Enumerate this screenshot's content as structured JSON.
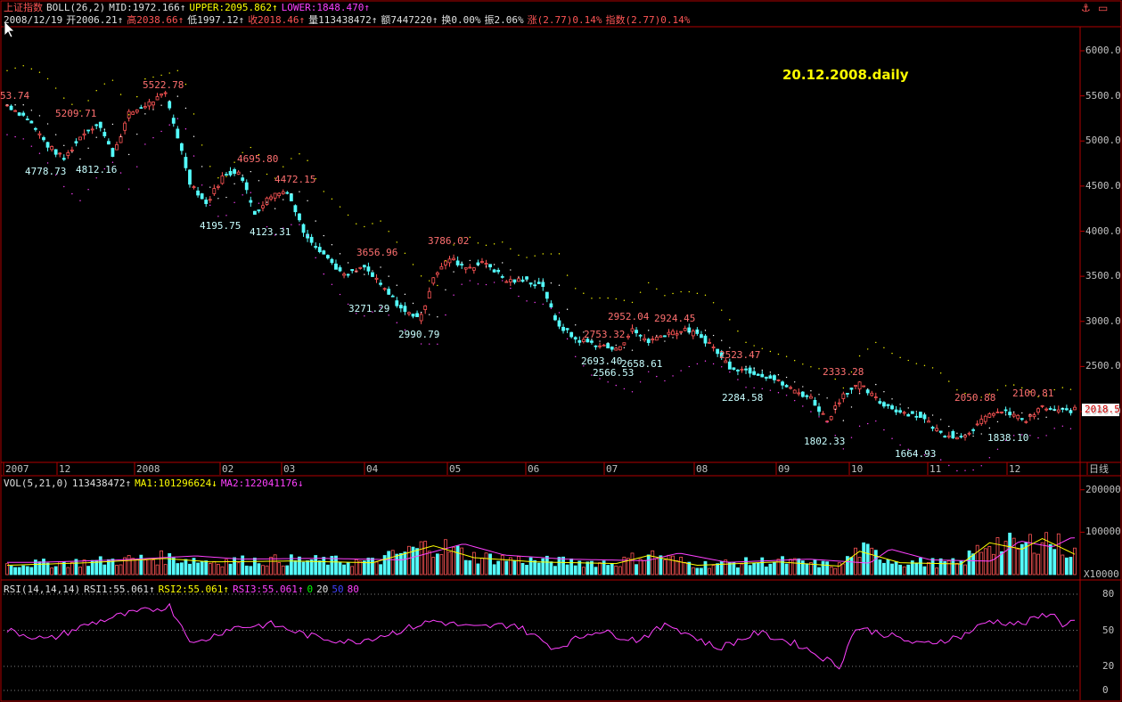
{
  "colors": {
    "up": "#ff5555",
    "down": "#54fcfc",
    "mid": "#ffffff",
    "upper": "#ffff00",
    "lower": "#ff40ff",
    "ma1": "#ffff00",
    "ma2": "#ff40ff",
    "rsi": "#ff40ff",
    "grid": "#8b0000",
    "axis": "#b00000"
  },
  "header": {
    "symbol": "上证指数",
    "indicator": "BOLL(26,2)",
    "mid": "MID:1972.166↑",
    "upper": "UPPER:2095.862↑",
    "lower": "LOWER:1848.470↑",
    "line2": {
      "date": "2008/12/19",
      "open": "开2006.21↑",
      "high": "高2038.66↑",
      "low": "低1997.12↑",
      "close": "收2018.46↑",
      "volume": "量113438472↑",
      "amount": "额7447220↑",
      "turnover": "换0.00%",
      "amplitude": "振2.06%",
      "rise": "涨(2.77)0.14%",
      "index": "指数(2.77)0.14%"
    }
  },
  "watermark": "20.12.2008.daily",
  "controls": {
    "anchor_icon": "anchor-icon",
    "restore_icon": "restore-window-icon"
  },
  "price_axis": {
    "labels": [
      "6000.0",
      "5500.0",
      "5000.0",
      "4500.0",
      "4000.0",
      "3500.0",
      "3000.0",
      "2500.0",
      "2000.0"
    ],
    "values": [
      6000,
      5500,
      5000,
      4500,
      4000,
      3500,
      3000,
      2500,
      2000
    ],
    "last_price": "2018.5"
  },
  "time_axis": {
    "labels": [
      "2007",
      "12",
      "2008",
      "02",
      "03",
      "04",
      "05",
      "06",
      "07",
      "08",
      "09",
      "10",
      "11",
      "12",
      "日线"
    ]
  },
  "annotations": [
    {
      "text": "53.74",
      "price": 5400,
      "type": "high"
    },
    {
      "text": "5209.71",
      "price": 5200,
      "type": "high"
    },
    {
      "text": "5522.78",
      "price": 5520,
      "type": "high"
    },
    {
      "text": "4778.73",
      "price": 4800,
      "type": "low"
    },
    {
      "text": "4812.16",
      "price": 4810,
      "type": "low"
    },
    {
      "text": "4695.80",
      "price": 4700,
      "type": "high"
    },
    {
      "text": "4472.15",
      "price": 4470,
      "type": "high"
    },
    {
      "text": "4195.75",
      "price": 4195,
      "type": "low"
    },
    {
      "text": "4123.31",
      "price": 4123,
      "type": "low"
    },
    {
      "text": "3786.02",
      "price": 3786,
      "type": "high"
    },
    {
      "text": "3656.96",
      "price": 3657,
      "type": "high"
    },
    {
      "text": "3271.29",
      "price": 3271,
      "type": "low"
    },
    {
      "text": "2990.79",
      "price": 2990,
      "type": "low"
    },
    {
      "text": "2952.04",
      "price": 2952,
      "type": "high"
    },
    {
      "text": "2924.45",
      "price": 2924,
      "type": "high"
    },
    {
      "text": "2753.32",
      "price": 2753,
      "type": "high"
    },
    {
      "text": "2693.40",
      "price": 2693,
      "type": "low"
    },
    {
      "text": "2566.53",
      "price": 2566,
      "type": "low"
    },
    {
      "text": "2658.61",
      "price": 2658,
      "type": "low"
    },
    {
      "text": "2523.47",
      "price": 2523,
      "type": "high"
    },
    {
      "text": "2284.58",
      "price": 2284,
      "type": "low"
    },
    {
      "text": "2333.28",
      "price": 2333,
      "type": "high"
    },
    {
      "text": "1802.33",
      "price": 1802,
      "type": "low"
    },
    {
      "text": "2050.88",
      "price": 2050,
      "type": "high"
    },
    {
      "text": "1664.93",
      "price": 1664,
      "type": "low"
    },
    {
      "text": "2100.81",
      "price": 2100,
      "type": "high"
    },
    {
      "text": "1838.10",
      "price": 1838,
      "type": "low"
    }
  ],
  "volume_panel": {
    "title": "VOL(5,21,0)",
    "value": "113438472↑",
    "ma1": "MA1:101296624↓",
    "ma2": "MA2:122041176↓",
    "axis": [
      "200000",
      "100000",
      "X10000"
    ]
  },
  "rsi_panel": {
    "title": "RSI(14,14,14)",
    "rsi1": "RSI1:55.061↑",
    "rsi2": "RSI2:55.061↑",
    "rsi3": "RSI3:55.061↑",
    "lv0": "0",
    "lv20": "20",
    "lv50": "50",
    "lv80": "80",
    "axis": [
      "80",
      "50",
      "20",
      "0"
    ]
  },
  "chart_data": {
    "type": "candlestick",
    "period": "daily",
    "dates_start": "2007/10",
    "dates_end": "2008/12/19",
    "ylim": [
      1500,
      6300
    ],
    "close_path": [
      {
        "x": 0,
        "v": 5400
      },
      {
        "x": 10,
        "v": 5250
      },
      {
        "x": 20,
        "v": 4950
      },
      {
        "x": 28,
        "v": 4800
      },
      {
        "x": 38,
        "v": 5100
      },
      {
        "x": 45,
        "v": 5200
      },
      {
        "x": 52,
        "v": 4850
      },
      {
        "x": 60,
        "v": 5300
      },
      {
        "x": 70,
        "v": 5420
      },
      {
        "x": 78,
        "v": 5520
      },
      {
        "x": 84,
        "v": 5050
      },
      {
        "x": 90,
        "v": 4550
      },
      {
        "x": 98,
        "v": 4300
      },
      {
        "x": 106,
        "v": 4600
      },
      {
        "x": 114,
        "v": 4680
      },
      {
        "x": 122,
        "v": 4200
      },
      {
        "x": 130,
        "v": 4400
      },
      {
        "x": 138,
        "v": 4450
      },
      {
        "x": 146,
        "v": 4000
      },
      {
        "x": 156,
        "v": 3750
      },
      {
        "x": 166,
        "v": 3500
      },
      {
        "x": 176,
        "v": 3600
      },
      {
        "x": 186,
        "v": 3350
      },
      {
        "x": 196,
        "v": 3100
      },
      {
        "x": 204,
        "v": 3050
      },
      {
        "x": 210,
        "v": 3500
      },
      {
        "x": 218,
        "v": 3700
      },
      {
        "x": 226,
        "v": 3600
      },
      {
        "x": 236,
        "v": 3650
      },
      {
        "x": 246,
        "v": 3450
      },
      {
        "x": 256,
        "v": 3450
      },
      {
        "x": 264,
        "v": 3400
      },
      {
        "x": 270,
        "v": 3000
      },
      {
        "x": 280,
        "v": 2800
      },
      {
        "x": 290,
        "v": 2750
      },
      {
        "x": 300,
        "v": 2680
      },
      {
        "x": 308,
        "v": 2900
      },
      {
        "x": 316,
        "v": 2780
      },
      {
        "x": 326,
        "v": 2880
      },
      {
        "x": 336,
        "v": 2900
      },
      {
        "x": 346,
        "v": 2760
      },
      {
        "x": 356,
        "v": 2500
      },
      {
        "x": 366,
        "v": 2450
      },
      {
        "x": 376,
        "v": 2380
      },
      {
        "x": 386,
        "v": 2250
      },
      {
        "x": 396,
        "v": 2150
      },
      {
        "x": 404,
        "v": 1900
      },
      {
        "x": 412,
        "v": 2200
      },
      {
        "x": 420,
        "v": 2300
      },
      {
        "x": 430,
        "v": 2100
      },
      {
        "x": 440,
        "v": 2000
      },
      {
        "x": 450,
        "v": 1950
      },
      {
        "x": 460,
        "v": 1760
      },
      {
        "x": 470,
        "v": 1720
      },
      {
        "x": 478,
        "v": 1850
      },
      {
        "x": 486,
        "v": 2000
      },
      {
        "x": 494,
        "v": 1980
      },
      {
        "x": 502,
        "v": 1900
      },
      {
        "x": 510,
        "v": 2050
      },
      {
        "x": 518,
        "v": 2000
      },
      {
        "x": 526,
        "v": 2018
      }
    ],
    "volume_path": [
      {
        "x": 0,
        "v": 22
      },
      {
        "x": 40,
        "v": 28
      },
      {
        "x": 78,
        "v": 38
      },
      {
        "x": 100,
        "v": 30
      },
      {
        "x": 140,
        "v": 32
      },
      {
        "x": 180,
        "v": 28
      },
      {
        "x": 210,
        "v": 68
      },
      {
        "x": 230,
        "v": 40
      },
      {
        "x": 260,
        "v": 30
      },
      {
        "x": 300,
        "v": 26
      },
      {
        "x": 316,
        "v": 45
      },
      {
        "x": 340,
        "v": 22
      },
      {
        "x": 380,
        "v": 30
      },
      {
        "x": 410,
        "v": 20
      },
      {
        "x": 420,
        "v": 55
      },
      {
        "x": 440,
        "v": 28
      },
      {
        "x": 470,
        "v": 25
      },
      {
        "x": 484,
        "v": 75
      },
      {
        "x": 500,
        "v": 60
      },
      {
        "x": 510,
        "v": 85
      },
      {
        "x": 526,
        "v": 48
      }
    ],
    "rsi_path": [
      {
        "x": 0,
        "v": 50
      },
      {
        "x": 20,
        "v": 42
      },
      {
        "x": 40,
        "v": 55
      },
      {
        "x": 55,
        "v": 62
      },
      {
        "x": 80,
        "v": 70
      },
      {
        "x": 92,
        "v": 38
      },
      {
        "x": 110,
        "v": 52
      },
      {
        "x": 130,
        "v": 55
      },
      {
        "x": 150,
        "v": 45
      },
      {
        "x": 170,
        "v": 40
      },
      {
        "x": 190,
        "v": 48
      },
      {
        "x": 210,
        "v": 58
      },
      {
        "x": 230,
        "v": 52
      },
      {
        "x": 250,
        "v": 55
      },
      {
        "x": 270,
        "v": 35
      },
      {
        "x": 290,
        "v": 50
      },
      {
        "x": 310,
        "v": 42
      },
      {
        "x": 326,
        "v": 55
      },
      {
        "x": 350,
        "v": 35
      },
      {
        "x": 370,
        "v": 48
      },
      {
        "x": 390,
        "v": 38
      },
      {
        "x": 410,
        "v": 20
      },
      {
        "x": 418,
        "v": 52
      },
      {
        "x": 430,
        "v": 48
      },
      {
        "x": 450,
        "v": 38
      },
      {
        "x": 470,
        "v": 45
      },
      {
        "x": 484,
        "v": 58
      },
      {
        "x": 500,
        "v": 55
      },
      {
        "x": 514,
        "v": 65
      },
      {
        "x": 520,
        "v": 55
      },
      {
        "x": 526,
        "v": 58
      }
    ]
  }
}
